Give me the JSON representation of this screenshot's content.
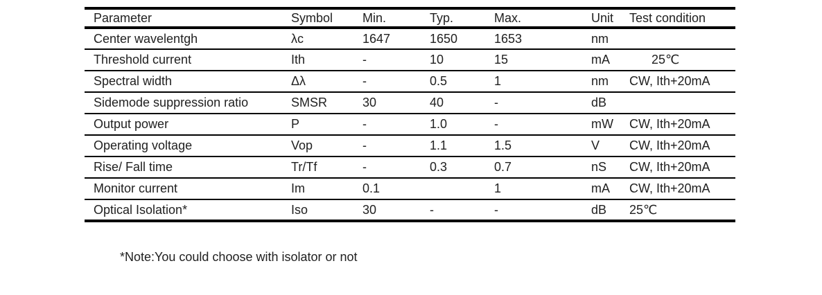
{
  "table": {
    "headers": [
      "Parameter",
      "Symbol",
      "Min.",
      "Typ.",
      "Max.",
      "Unit",
      "Test condition"
    ],
    "rows": [
      {
        "parameter": "Center wavelentgh",
        "symbol": "λc",
        "min": "1647",
        "typ": "1650",
        "max": "1653",
        "unit": "nm",
        "test_condition": ""
      },
      {
        "parameter": "Threshold current",
        "symbol": "Ith",
        "min": "-",
        "typ": "10",
        "max": "15",
        "unit": "mA",
        "test_condition": "25℃",
        "test_condition_style": "indented"
      },
      {
        "parameter": "Spectral width",
        "symbol": "Δλ",
        "min": "-",
        "typ": "0.5",
        "max": "1",
        "unit": "nm",
        "test_condition": "CW, Ith+20mA"
      },
      {
        "parameter": "Sidemode suppression ratio",
        "symbol": "SMSR",
        "min": "30",
        "typ": "40",
        "max": "-",
        "unit": "dB",
        "test_condition": ""
      },
      {
        "parameter": "Output power",
        "symbol": "P",
        "min": "-",
        "typ": "1.0",
        "max": "-",
        "unit": "mW",
        "test_condition": "CW, Ith+20mA"
      },
      {
        "parameter": "Operating voltage",
        "symbol": "Vop",
        "min": "-",
        "typ": "1.1",
        "max": "1.5",
        "unit": "V",
        "test_condition": "CW, Ith+20mA"
      },
      {
        "parameter": "Rise/ Fall time",
        "symbol": "Tr/Tf",
        "min": "-",
        "typ": "0.3",
        "max": "0.7",
        "unit": "nS",
        "test_condition": "CW, Ith+20mA"
      },
      {
        "parameter": "Monitor current",
        "symbol": "Im",
        "min": "0.1",
        "typ": "",
        "max": "1",
        "unit": "mA",
        "test_condition": "CW, Ith+20mA"
      },
      {
        "parameter": "Optical Isolation*",
        "symbol": "Iso",
        "min": "30",
        "typ": "-",
        "max": "-",
        "unit": "dB",
        "test_condition": "25℃"
      }
    ]
  },
  "note": "*Note:You could choose with isolator or not"
}
